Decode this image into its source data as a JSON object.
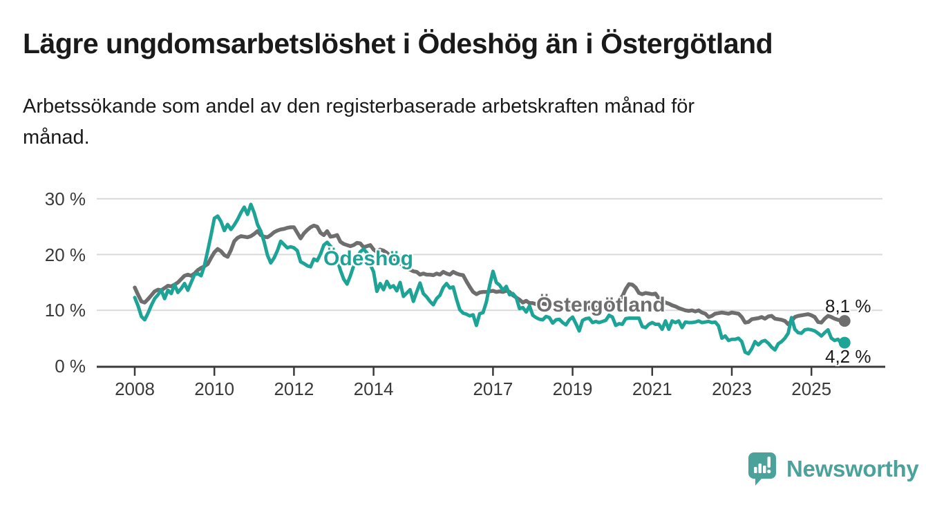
{
  "header": {
    "title": "Lägre ungdomsarbetslöshet i Ödeshög än i Östergötland",
    "subtitle_lines": [
      "Arbetssökande som andel av den registerbaserade arbetskraften månad för",
      "månad."
    ]
  },
  "colors": {
    "odeshog_teal": "#1da496",
    "ostergotland_gray": "#6e6e6e",
    "axis": "#3a3a3a",
    "gridline": "#d9d9d9",
    "text_dark": "#1a1a1a",
    "brand_teal": "#4ba29b"
  },
  "chart_data": {
    "type": "line",
    "title": "Lägre ungdomsarbetslöshet i Ödeshög än i Östergötland",
    "xlabel": "",
    "ylabel": "",
    "unit": "%",
    "frequency": "monthly",
    "x_start": "2008-01",
    "x_end": "2025-11",
    "ylim": [
      0,
      30
    ],
    "grid": "horizontal",
    "legend_position": "inline-labels",
    "y_ticks": [
      {
        "value": 0,
        "label": "0 %"
      },
      {
        "value": 10,
        "label": "10 %"
      },
      {
        "value": 20,
        "label": "20 %"
      },
      {
        "value": 30,
        "label": "30 %"
      }
    ],
    "x_ticks": [
      {
        "year": 2008,
        "label": "2008"
      },
      {
        "year": 2010,
        "label": "2010"
      },
      {
        "year": 2012,
        "label": "2012"
      },
      {
        "year": 2014,
        "label": "2014"
      },
      {
        "year": 2017,
        "label": "2017"
      },
      {
        "year": 2019,
        "label": "2019"
      },
      {
        "year": 2021,
        "label": "2021"
      },
      {
        "year": 2023,
        "label": "2023"
      },
      {
        "year": 2025,
        "label": "2025"
      }
    ],
    "series": [
      {
        "name": "Östergötland",
        "color": "#6e6e6e",
        "end_label": "8,1 %",
        "last_value": 8.1,
        "values": [
          14.1,
          12.8,
          11.6,
          11.4,
          12.0,
          12.7,
          13.4,
          13.7,
          13.6,
          14.0,
          14.4,
          14.3,
          14.6,
          15.0,
          15.6,
          16.2,
          16.4,
          16.2,
          16.6,
          17.2,
          17.6,
          17.9,
          18.3,
          19.4,
          20.4,
          21.0,
          20.6,
          19.9,
          19.6,
          20.8,
          22.4,
          23.0,
          23.3,
          23.2,
          23.1,
          23.3,
          23.7,
          24.2,
          23.5,
          23.2,
          23.1,
          23.5,
          24.0,
          24.3,
          24.5,
          24.6,
          24.8,
          24.9,
          24.9,
          23.9,
          22.9,
          23.8,
          24.4,
          24.9,
          25.2,
          25.0,
          23.9,
          23.5,
          24.2,
          23.2,
          23.3,
          23.5,
          22.3,
          21.9,
          21.7,
          21.5,
          21.7,
          22.1,
          22.0,
          21.3,
          21.5,
          21.7,
          20.9,
          20.5,
          20.9,
          20.7,
          20.3,
          19.8,
          19.4,
          18.9,
          18.4,
          18.0,
          17.6,
          17.3,
          17.0,
          16.9,
          16.4,
          16.6,
          16.4,
          16.4,
          16.3,
          16.6,
          16.4,
          16.9,
          16.6,
          16.4,
          16.9,
          16.6,
          16.4,
          16.3,
          15.2,
          14.2,
          13.3,
          12.9,
          13.2,
          13.3,
          13.3,
          13.4,
          13.5,
          13.3,
          13.4,
          13.3,
          13.5,
          13.3,
          12.7,
          12.3,
          11.9,
          11.4,
          11.7,
          11.3,
          11.3,
          11.1,
          11.3,
          11.2,
          11.1,
          10.8,
          11.0,
          10.8,
          10.7,
          10.4,
          10.7,
          10.5,
          10.4,
          10.2,
          10.0,
          10.2,
          10.3,
          10.5,
          10.3,
          10.5,
          10.4,
          10.6,
          10.5,
          10.7,
          10.8,
          11.0,
          11.9,
          12.5,
          13.8,
          14.7,
          14.6,
          14.1,
          13.1,
          12.9,
          13.1,
          13.0,
          12.9,
          13.0,
          12.1,
          11.7,
          11.4,
          11.2,
          10.9,
          10.7,
          10.4,
          10.2,
          10.0,
          9.9,
          10.0,
          9.8,
          10.0,
          9.6,
          9.4,
          8.8,
          9.0,
          9.4,
          9.5,
          9.6,
          9.5,
          9.4,
          9.6,
          9.5,
          9.4,
          8.8,
          7.8,
          7.9,
          8.4,
          8.5,
          8.6,
          8.8,
          8.5,
          8.9,
          9.0,
          8.5,
          8.4,
          8.3,
          8.1,
          7.5,
          8.1,
          8.8,
          9.0,
          9.1,
          9.2,
          9.3,
          9.1,
          8.8,
          7.9,
          7.8,
          8.5,
          9.0,
          8.8,
          8.5,
          8.3,
          8.2,
          8.1
        ]
      },
      {
        "name": "Ödeshög",
        "color": "#1da496",
        "end_label": "4,2 %",
        "last_value": 4.2,
        "values": [
          12.3,
          10.8,
          8.9,
          8.3,
          9.5,
          10.9,
          12.1,
          12.8,
          13.6,
          12.1,
          13.6,
          13.0,
          14.6,
          13.2,
          13.9,
          14.8,
          13.6,
          15.0,
          16.4,
          16.6,
          16.2,
          18.0,
          20.7,
          23.5,
          26.5,
          26.9,
          25.9,
          24.3,
          25.4,
          24.5,
          25.3,
          26.3,
          27.5,
          28.5,
          27.2,
          29.0,
          27.5,
          25.4,
          24.2,
          22.3,
          19.9,
          18.5,
          19.4,
          20.7,
          22.4,
          21.8,
          21.2,
          21.4,
          21.2,
          20.7,
          18.7,
          18.4,
          18.0,
          17.8,
          19.2,
          18.9,
          20.1,
          21.7,
          22.2,
          21.5,
          20.9,
          19.2,
          17.2,
          15.6,
          14.7,
          16.2,
          18.0,
          19.4,
          20.5,
          21.0,
          20.3,
          18.2,
          16.9,
          13.4,
          14.8,
          13.7,
          15.2,
          14.1,
          14.4,
          13.5,
          15.0,
          12.5,
          13.1,
          13.7,
          11.6,
          13.3,
          14.9,
          13.0,
          12.4,
          11.6,
          11.0,
          12.1,
          12.7,
          14.1,
          14.8,
          14.0,
          14.2,
          12.0,
          10.1,
          9.5,
          9.3,
          9.0,
          9.2,
          7.3,
          9.4,
          9.6,
          11.5,
          14.5,
          17.0,
          15.0,
          14.5,
          13.6,
          14.3,
          12.8,
          13.0,
          12.3,
          10.3,
          10.5,
          9.7,
          10.8,
          9.1,
          8.7,
          8.4,
          8.3,
          8.9,
          8.7,
          7.7,
          8.3,
          8.4,
          7.8,
          7.4,
          8.3,
          8.8,
          7.6,
          6.3,
          8.2,
          8.5,
          8.6,
          7.8,
          8.0,
          7.8,
          8.0,
          8.2,
          9.1,
          8.8,
          7.3,
          7.6,
          7.5,
          8.5,
          8.6,
          8.6,
          8.6,
          8.6,
          7.1,
          6.9,
          7.5,
          7.8,
          7.5,
          7.5,
          6.6,
          8.1,
          6.6,
          8.1,
          7.8,
          8.1,
          6.9,
          7.9,
          7.8,
          7.8,
          7.9,
          8.1,
          7.8,
          7.9,
          8.0,
          7.8,
          7.9,
          7.2,
          5.0,
          5.4,
          4.6,
          4.8,
          4.8,
          5.0,
          4.4,
          2.5,
          2.2,
          3.1,
          4.4,
          3.8,
          4.4,
          4.6,
          4.1,
          3.4,
          2.9,
          4.0,
          4.4,
          5.0,
          5.9,
          8.7,
          6.6,
          6.0,
          5.9,
          6.5,
          6.6,
          6.5,
          6.3,
          5.9,
          5.4,
          6.0,
          6.5,
          5.0,
          4.6,
          4.8,
          4.1,
          4.2
        ]
      }
    ]
  },
  "footer": {
    "brand": "Newsworthy"
  }
}
